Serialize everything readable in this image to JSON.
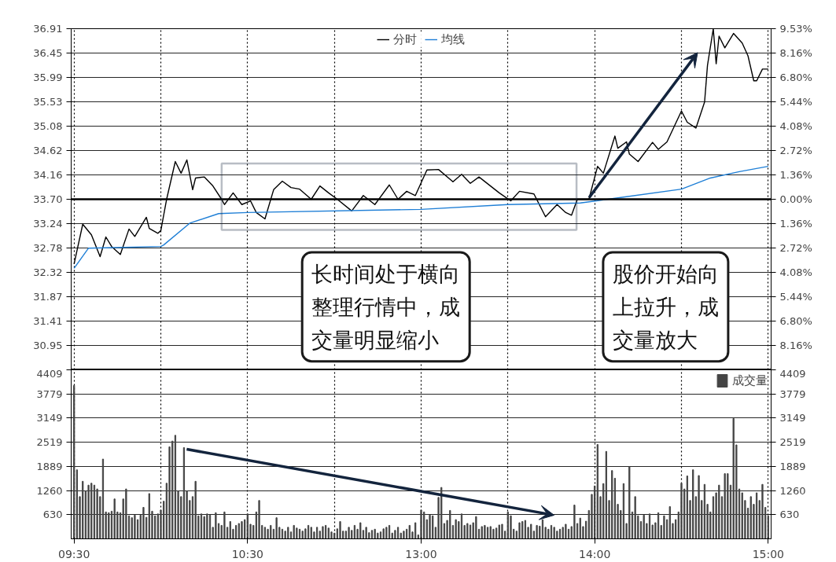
{
  "chart_data": [
    {
      "type": "line",
      "legend": "top",
      "grid": "xy",
      "tick_labels": "y",
      "marker": "none",
      "line_style": "solid",
      "categories": [
        null,
        null,
        null,
        null,
        null,
        null,
        null,
        null,
        null,
        null,
        null,
        null,
        null,
        null,
        null,
        null,
        null,
        null,
        null,
        null,
        null,
        null,
        null,
        null,
        null,
        null,
        null,
        null,
        null,
        null,
        null,
        null,
        null,
        null,
        null,
        null,
        null,
        null,
        null,
        null,
        null,
        null,
        null,
        null,
        null,
        null,
        null,
        null,
        null,
        null,
        null,
        null,
        null,
        null,
        null,
        null,
        null,
        null,
        null,
        null,
        null,
        null,
        null,
        null,
        null,
        null,
        null,
        null,
        null,
        null,
        null,
        null,
        null,
        null,
        null,
        null,
        null,
        null,
        null,
        null,
        null,
        null,
        null,
        null,
        null,
        null,
        null,
        null,
        null,
        null,
        null,
        null,
        null,
        null,
        null,
        null,
        null,
        null,
        null,
        null,
        null,
        null,
        null,
        null,
        null,
        null,
        null,
        null,
        null,
        null,
        null,
        null,
        null,
        null,
        null,
        null,
        null,
        null,
        null,
        null,
        null,
        null,
        null,
        null,
        null,
        null,
        null,
        null,
        null,
        null,
        null,
        null,
        null,
        null,
        null,
        null,
        null,
        null,
        null,
        null,
        null,
        null,
        null,
        null,
        null,
        null,
        null,
        null,
        null,
        null,
        null,
        null,
        null,
        null,
        null,
        null,
        null,
        null,
        null,
        null,
        null,
        null,
        null,
        null,
        null,
        null,
        null,
        null,
        null,
        null,
        null,
        null,
        null,
        null,
        null,
        null,
        null,
        null,
        null,
        null,
        null,
        null,
        null,
        null,
        null,
        null,
        null,
        null,
        null,
        null,
        null,
        null,
        null,
        null,
        null,
        null,
        null,
        null,
        null,
        null,
        null,
        null,
        null,
        null,
        null,
        null,
        null,
        null,
        null,
        null,
        null,
        null,
        null,
        null,
        null,
        null,
        null,
        null,
        null,
        null,
        null,
        null,
        null,
        null,
        null,
        null,
        null,
        null,
        null,
        null,
        null,
        null,
        null,
        null,
        null,
        null,
        null,
        null,
        null,
        null,
        null
      ],
      "ylim": [
        30.49,
        36.91
      ],
      "yticks": [
        30.95,
        31.41,
        31.87,
        32.32,
        32.78,
        33.24,
        {
          "value": 33.7,
          "label": "33.70"
        },
        34.16,
        34.62,
        35.08,
        35.53,
        35.99,
        36.45,
        36.91
      ],
      "y2lim": [
        -9.53,
        9.53
      ],
      "y2ticks": [
        {
          "value": -8.16,
          "label": "8.16%"
        },
        {
          "value": -6.8,
          "label": "6.80%"
        },
        {
          "value": -5.44,
          "label": "5.44%"
        },
        {
          "value": -4.08,
          "label": "4.08%"
        },
        {
          "value": -2.72,
          "label": "2.72%"
        },
        {
          "value": -1.36,
          "label": "1.36%"
        },
        {
          "value": 0,
          "label": "0.00%"
        },
        {
          "value": 1.36,
          "label": "1.36%"
        },
        {
          "value": 2.72,
          "label": "2.72%"
        },
        {
          "value": 4.08,
          "label": "4.08%"
        },
        {
          "value": 5.44,
          "label": "5.44%"
        },
        {
          "value": 6.8,
          "label": "6.80%"
        },
        {
          "value": 8.16,
          "label": "8.16%"
        },
        {
          "value": 9.53,
          "label": "9.53%"
        }
      ],
      "ref_lines": [
        {
          "axis": "y",
          "value": 33.7,
          "color": "#000000"
        }
      ],
      "annotations": [
        "长时间处于横向整理行情中，成交量明显缩小",
        "股价开始向上拉升，成交量放大"
      ],
      "series": [
        {
          "name": "分时",
          "color": "#000000",
          "values": [
            32.48,
            null,
            null,
            33.23,
            null,
            null,
            33.03,
            null,
            null,
            32.62,
            null,
            32.99,
            null,
            32.81,
            null,
            null,
            32.66,
            null,
            null,
            33.14,
            null,
            33.0,
            null,
            null,
            null,
            33.36,
            33.15,
            null,
            null,
            33.06,
            33.11,
            null,
            33.7,
            null,
            null,
            34.41,
            null,
            34.19,
            null,
            34.44,
            null,
            33.88,
            34.1,
            null,
            null,
            34.12,
            null,
            null,
            33.95,
            null,
            null,
            33.7,
            33.6,
            null,
            null,
            33.82,
            null,
            null,
            33.6,
            null,
            null,
            33.67,
            null,
            33.45,
            null,
            null,
            33.33,
            null,
            null,
            33.88,
            null,
            null,
            34.04,
            null,
            null,
            33.92,
            null,
            null,
            33.89,
            null,
            null,
            null,
            33.7,
            null,
            null,
            33.95,
            null,
            null,
            33.82,
            null,
            null,
            33.7,
            null,
            null,
            null,
            null,
            33.48,
            null,
            null,
            null,
            33.77,
            null,
            null,
            null,
            33.6,
            null,
            null,
            null,
            null,
            33.97,
            null,
            null,
            33.7,
            null,
            null,
            33.85,
            null,
            null,
            33.77,
            null,
            null,
            null,
            34.25,
            null,
            null,
            null,
            34.26,
            null,
            null,
            null,
            null,
            34.03,
            null,
            null,
            34.17,
            null,
            null,
            34.0,
            null,
            null,
            34.12,
            null,
            null,
            null,
            null,
            null,
            null,
            33.82,
            null,
            null,
            null,
            33.67,
            null,
            null,
            33.85,
            null,
            null,
            null,
            null,
            33.8,
            null,
            null,
            null,
            33.37,
            null,
            null,
            null,
            33.6,
            null,
            null,
            33.45,
            null,
            33.4,
            null,
            33.7,
            null,
            null,
            null,
            33.7,
            null,
            null,
            34.32,
            null,
            34.19,
            null,
            null,
            null,
            34.89,
            34.66,
            null,
            null,
            34.78,
            34.55,
            null,
            null,
            34.41,
            null,
            null,
            null,
            null,
            34.77,
            null,
            34.64,
            null,
            null,
            34.78,
            null,
            null,
            null,
            null,
            35.36,
            null,
            35.15,
            null,
            null,
            35.04,
            null,
            null,
            35.53,
            36.22,
            null,
            36.91,
            36.25,
            36.77,
            null,
            36.55,
            null,
            null,
            36.82,
            null,
            null,
            36.64,
            null,
            36.4,
            null,
            35.93,
            35.93,
            null,
            36.15,
            null,
            36.15
          ]
        },
        {
          "name": "均线",
          "color": "#1f7fd6",
          "values": [
            32.4,
            null,
            null,
            null,
            null,
            32.78,
            null,
            null,
            null,
            null,
            null,
            null,
            null,
            null,
            null,
            null,
            null,
            null,
            null,
            null,
            null,
            null,
            null,
            null,
            null,
            null,
            null,
            null,
            null,
            null,
            32.81,
            32.84,
            null,
            null,
            null,
            null,
            null,
            null,
            null,
            null,
            33.25,
            null,
            null,
            null,
            null,
            null,
            null,
            null,
            null,
            null,
            33.43,
            null,
            null,
            null,
            null,
            null,
            null,
            null,
            null,
            null,
            33.45,
            null,
            null,
            null,
            null,
            null,
            null,
            null,
            null,
            null,
            null,
            null,
            null,
            null,
            null,
            null,
            null,
            null,
            null,
            null,
            null,
            null,
            null,
            null,
            null,
            null,
            null,
            null,
            null,
            null,
            null,
            null,
            null,
            null,
            null,
            null,
            null,
            null,
            null,
            null,
            null,
            null,
            null,
            null,
            null,
            null,
            null,
            null,
            null,
            null,
            null,
            null,
            null,
            null,
            null,
            null,
            null,
            null,
            null,
            null,
            33.51,
            null,
            null,
            null,
            null,
            null,
            null,
            null,
            null,
            null,
            null,
            null,
            null,
            null,
            null,
            null,
            null,
            null,
            null,
            null,
            null,
            null,
            null,
            null,
            null,
            null,
            null,
            null,
            null,
            null,
            33.6,
            null,
            null,
            null,
            null,
            null,
            null,
            null,
            null,
            null,
            null,
            null,
            null,
            null,
            null,
            null,
            null,
            null,
            null,
            null,
            null,
            null,
            null,
            null,
            null,
            33.63,
            null,
            null,
            null,
            null,
            null,
            null,
            null,
            null,
            null,
            null,
            null,
            null,
            null,
            null,
            33.74,
            null,
            null,
            null,
            null,
            null,
            null,
            null,
            null,
            null,
            null,
            null,
            null,
            null,
            null,
            null,
            null,
            null,
            null,
            null,
            33.89,
            null,
            null,
            null,
            null,
            null,
            null,
            null,
            null,
            null,
            34.1,
            null,
            null,
            null,
            null,
            null,
            null,
            null,
            null,
            null,
            34.22,
            null,
            null,
            null,
            null,
            null,
            null,
            null,
            null,
            null,
            34.32
          ]
        }
      ]
    },
    {
      "type": "bar",
      "legend": "top right",
      "grid": "xy",
      "categories": [
        "09:30",
        null,
        null,
        null,
        null,
        null,
        null,
        null,
        null,
        null,
        null,
        null,
        null,
        null,
        null,
        null,
        null,
        null,
        null,
        null,
        null,
        null,
        null,
        null,
        null,
        null,
        null,
        null,
        null,
        null,
        null,
        null,
        null,
        null,
        null,
        null,
        null,
        null,
        null,
        null,
        null,
        null,
        null,
        null,
        null,
        null,
        null,
        null,
        null,
        null,
        null,
        null,
        null,
        null,
        null,
        null,
        null,
        null,
        null,
        null,
        "10:30",
        null,
        null,
        null,
        null,
        null,
        null,
        null,
        null,
        null,
        null,
        null,
        null,
        null,
        null,
        null,
        null,
        null,
        null,
        null,
        null,
        null,
        null,
        null,
        null,
        null,
        null,
        null,
        null,
        null,
        null,
        null,
        null,
        null,
        null,
        null,
        null,
        null,
        null,
        null,
        null,
        null,
        null,
        null,
        null,
        null,
        null,
        null,
        null,
        null,
        null,
        null,
        null,
        null,
        null,
        null,
        null,
        null,
        null,
        null,
        "13:00",
        null,
        null,
        null,
        null,
        null,
        null,
        null,
        null,
        null,
        null,
        null,
        null,
        null,
        null,
        null,
        null,
        null,
        null,
        null,
        null,
        null,
        null,
        null,
        null,
        null,
        null,
        null,
        null,
        null,
        null,
        null,
        null,
        null,
        null,
        null,
        null,
        null,
        null,
        null,
        null,
        null,
        null,
        null,
        null,
        null,
        null,
        null,
        null,
        null,
        null,
        null,
        null,
        null,
        null,
        null,
        null,
        null,
        null,
        null,
        "14:00",
        null,
        null,
        null,
        null,
        null,
        null,
        null,
        null,
        null,
        null,
        null,
        null,
        null,
        null,
        null,
        null,
        null,
        null,
        null,
        null,
        null,
        null,
        null,
        null,
        null,
        null,
        null,
        null,
        null,
        null,
        null,
        null,
        null,
        null,
        null,
        null,
        null,
        null,
        null,
        null,
        null,
        null,
        null,
        null,
        null,
        null,
        null,
        null,
        null,
        null,
        null,
        null,
        null,
        null,
        null,
        null,
        null,
        null,
        null,
        "15:00"
      ],
      "ylim": [
        0,
        4409
      ],
      "yticks": [
        630,
        1260,
        1889,
        2519,
        3149,
        3779,
        4409
      ],
      "y2lim": [
        0,
        4409
      ],
      "y2ticks": [
        630,
        1260,
        1889,
        2519,
        3149,
        3779,
        4409
      ],
      "series": [
        {
          "name": "成交量",
          "color": "#444444",
          "values": [
            4000,
            1800,
            1100,
            1500,
            1250,
            1400,
            1450,
            1400,
            1300,
            1100,
            2080,
            700,
            680,
            720,
            1040,
            700,
            680,
            1040,
            1300,
            600,
            550,
            620,
            500,
            620,
            820,
            560,
            1180,
            720,
            600,
            650,
            750,
            980,
            1450,
            2400,
            2550,
            2700,
            1250,
            1100,
            2380,
            1250,
            1000,
            1100,
            1500,
            600,
            650,
            580,
            650,
            620,
            300,
            680,
            400,
            350,
            700,
            300,
            450,
            250,
            350,
            400,
            450,
            500,
            650,
            380,
            350,
            700,
            1000,
            350,
            300,
            250,
            350,
            250,
            550,
            300,
            250,
            200,
            300,
            180,
            350,
            280,
            250,
            200,
            260,
            350,
            300,
            180,
            300,
            200,
            320,
            350,
            280,
            180,
            150,
            260,
            450,
            200,
            200,
            300,
            220,
            350,
            250,
            420,
            220,
            300,
            160,
            220,
            250,
            150,
            180,
            260,
            300,
            350,
            150,
            220,
            300,
            150,
            200,
            250,
            350,
            180,
            420,
            100,
            750,
            700,
            500,
            620,
            600,
            300,
            1080,
            1340,
            400,
            480,
            740,
            350,
            500,
            450,
            650,
            350,
            400,
            360,
            420,
            580,
            250,
            320,
            350,
            300,
            320,
            250,
            280,
            360,
            380,
            200,
            700,
            600,
            250,
            200,
            420,
            450,
            480,
            300,
            380,
            200,
            350,
            330,
            500,
            300,
            250,
            350,
            300,
            200,
            250,
            300,
            380,
            250,
            320,
            880,
            400,
            540,
            320,
            460,
            740,
            1160,
            1380,
            2460,
            1100,
            1440,
            2280,
            1000,
            1780,
            1580,
            900,
            740,
            1440,
            400,
            1880,
            700,
            1100,
            600,
            450,
            620,
            400,
            650,
            360,
            420,
            680,
            350,
            600,
            500,
            840,
            400,
            500,
            700,
            1450,
            1300,
            1640,
            1000,
            1800,
            1100,
            1650,
            1000,
            1420,
            900,
            700,
            1100,
            1200,
            1400,
            1100,
            1700,
            1700,
            1400,
            3140,
            2450,
            1300,
            1200,
            1000,
            800,
            1100,
            900,
            1200,
            1000,
            1420,
            820,
            600
          ]
        }
      ]
    }
  ]
}
